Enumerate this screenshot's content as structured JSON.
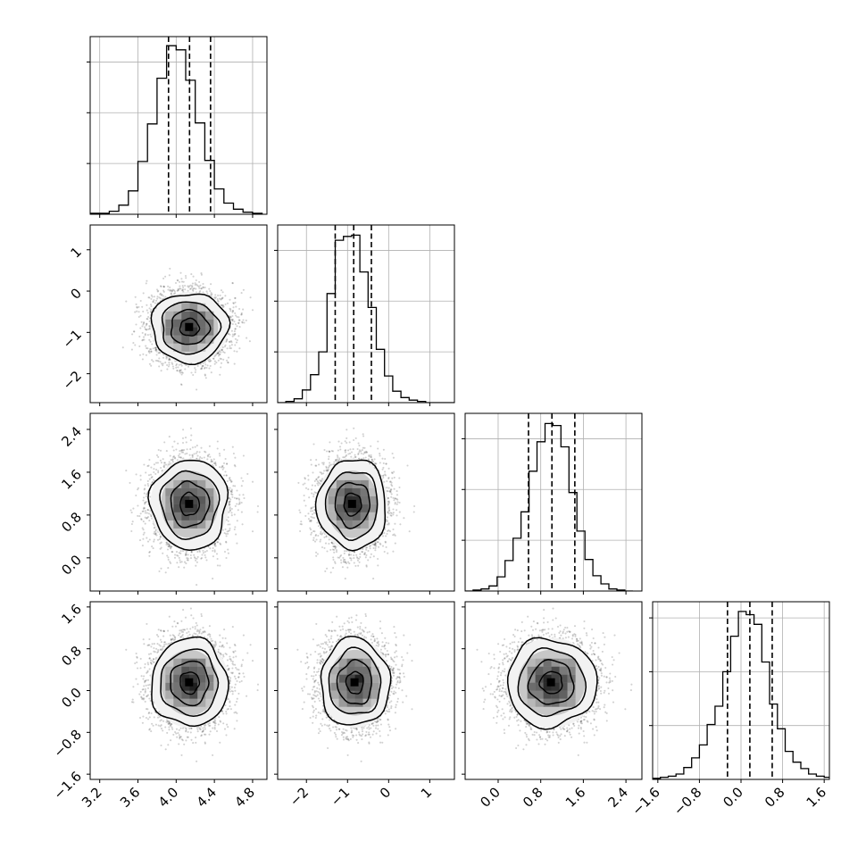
{
  "chart_data": {
    "type": "corner",
    "grid": true,
    "parameters": [
      {
        "range": [
          3.1,
          4.95
        ],
        "ticks": [
          3.2,
          3.6,
          4.0,
          4.4,
          4.8
        ],
        "tick_labels": [
          "3.2",
          "3.6",
          "4.0",
          "4.4",
          "4.8"
        ],
        "quantiles": [
          3.92,
          4.14,
          4.36
        ],
        "mean": 4.14,
        "sd": 0.2,
        "hist": {
          "edges": [
            3.1,
            3.2,
            3.3,
            3.4,
            3.5,
            3.6,
            3.7,
            3.8,
            3.9,
            4.0,
            4.1,
            4.2,
            4.3,
            4.4,
            4.5,
            4.6,
            4.7,
            4.8,
            4.9
          ],
          "counts": [
            1,
            1,
            3,
            9,
            23,
            52,
            89,
            134,
            166,
            162,
            132,
            90,
            53,
            25,
            11,
            5,
            2,
            1
          ],
          "peak": 175
        }
      },
      {
        "range": [
          -2.7,
          1.6
        ],
        "ticks": [
          -2,
          -1,
          0,
          1
        ],
        "tick_labels": [
          "−2",
          "−1",
          "0",
          "1"
        ],
        "quantiles": [
          -1.3,
          -0.85,
          -0.42
        ],
        "mean": -0.86,
        "sd": 0.42,
        "hist": {
          "edges": [
            -2.7,
            -2.5,
            -2.3,
            -2.1,
            -1.9,
            -1.7,
            -1.5,
            -1.3,
            -1.1,
            -0.9,
            -0.7,
            -0.5,
            -0.3,
            -0.1,
            0.1,
            0.3,
            0.5,
            0.7,
            0.9,
            1.1,
            1.3,
            1.5,
            1.7
          ],
          "counts": [
            0,
            1,
            3,
            10,
            22,
            40,
            86,
            128,
            131,
            132,
            103,
            75,
            42,
            21,
            9,
            4,
            2,
            1,
            0,
            0,
            0,
            0
          ],
          "peak": 140
        }
      },
      {
        "range": [
          -0.62,
          2.7
        ],
        "ticks": [
          0.0,
          0.8,
          1.6,
          2.4
        ],
        "tick_labels": [
          "0.0",
          "0.8",
          "1.6",
          "2.4"
        ],
        "quantiles": [
          0.57,
          1.01,
          1.44
        ],
        "mean": 1.0,
        "sd": 0.42,
        "hist": {
          "edges": [
            -0.62,
            -0.47,
            -0.32,
            -0.17,
            -0.02,
            0.13,
            0.28,
            0.43,
            0.58,
            0.73,
            0.88,
            1.03,
            1.18,
            1.33,
            1.48,
            1.63,
            1.78,
            1.93,
            2.08,
            2.23,
            2.38,
            2.53
          ],
          "counts": [
            0,
            1,
            2,
            5,
            14,
            30,
            52,
            78,
            118,
            147,
            165,
            163,
            142,
            97,
            59,
            31,
            15,
            7,
            2,
            1,
            0
          ],
          "peak": 175
        }
      },
      {
        "range": [
          -1.7,
          1.7
        ],
        "ticks": [
          -1.6,
          -0.8,
          0.0,
          0.8,
          1.6
        ],
        "tick_labels": [
          "−1.6",
          "−0.8",
          "0.0",
          "0.8",
          "1.6"
        ],
        "quantiles": [
          -0.26,
          0.17,
          0.6
        ],
        "mean": 0.17,
        "sd": 0.42,
        "hist": {
          "edges": [
            -1.7,
            -1.55,
            -1.4,
            -1.25,
            -1.1,
            -0.95,
            -0.8,
            -0.65,
            -0.5,
            -0.35,
            -0.2,
            -0.05,
            0.1,
            0.25,
            0.4,
            0.55,
            0.7,
            0.85,
            1.0,
            1.15,
            1.3,
            1.45,
            1.6,
            1.75
          ],
          "counts": [
            1,
            2,
            3,
            5,
            11,
            20,
            32,
            51,
            68,
            100,
            133,
            156,
            153,
            144,
            109,
            70,
            47,
            26,
            16,
            10,
            5,
            3,
            2
          ],
          "peak": 165
        }
      }
    ],
    "pairs": [
      {
        "x": 0,
        "y": 1,
        "peak": [
          4.14,
          -0.88
        ]
      },
      {
        "x": 0,
        "y": 2,
        "peak": [
          4.14,
          1.0
        ]
      },
      {
        "x": 1,
        "y": 2,
        "peak": [
          -0.88,
          1.0
        ]
      },
      {
        "x": 0,
        "y": 3,
        "peak": [
          4.14,
          0.15
        ]
      },
      {
        "x": 1,
        "y": 3,
        "peak": [
          -0.82,
          0.15
        ]
      },
      {
        "x": 2,
        "y": 3,
        "peak": [
          1.0,
          0.15
        ]
      }
    ],
    "contour_levels_sigma": [
      0.5,
      1.0,
      1.5,
      2.0
    ]
  }
}
